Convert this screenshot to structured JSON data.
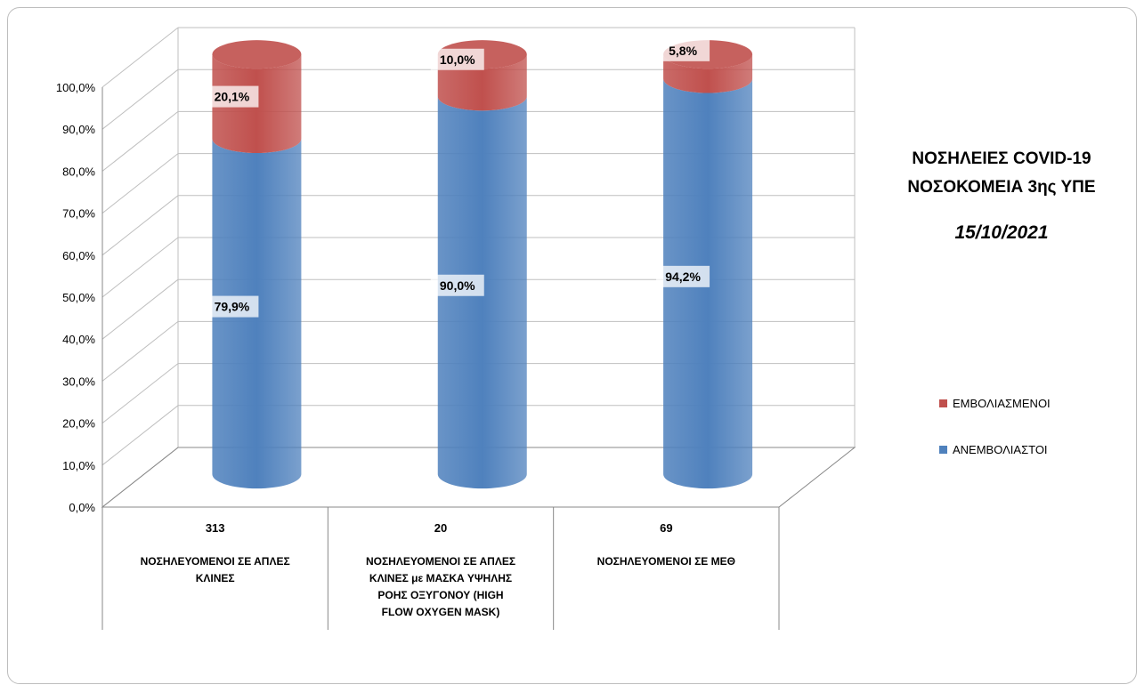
{
  "colors": {
    "vaccinated": "#c0504d",
    "unvaccinated": "#4f81bd",
    "grid": "#bfbfbf",
    "axis": "#888888"
  },
  "titles": {
    "line1": "ΝΟΣΗΛΕΙΕΣ COVID-19",
    "line2": "ΝΟΣΟΚΟΜΕΙΑ 3ης ΥΠΕ",
    "date": "15/10/2021"
  },
  "legend": [
    {
      "label": "ΕΜΒΟΛΙΑΣΜΕΝΟΙ",
      "color": "#c0504d"
    },
    {
      "label": "ΑΝΕΜΒΟΛΙΑΣΤΟΙ",
      "color": "#4f81bd"
    }
  ],
  "chart_data": {
    "type": "bar",
    "stacked": true,
    "three_d": true,
    "ylim": [
      0,
      100
    ],
    "y_ticks": [
      "0,0%",
      "10,0%",
      "20,0%",
      "30,0%",
      "40,0%",
      "50,0%",
      "60,0%",
      "70,0%",
      "80,0%",
      "90,0%",
      "100,0%"
    ],
    "categories": [
      {
        "count": "313",
        "label_lines": [
          "ΝΟΣΗΛΕΥΟΜΕΝΟΙ ΣΕ ΑΠΛΕΣ",
          "ΚΛΙΝΕΣ"
        ]
      },
      {
        "count": "20",
        "label_lines": [
          "ΝΟΣΗΛΕΥΟΜΕΝΟΙ ΣΕ ΑΠΛΕΣ",
          "ΚΛΙΝΕΣ με ΜΑΣΚΑ ΥΨΗΛΗΣ",
          "ΡΟΗΣ ΟΞΥΓΟΝΟΥ (HIGH",
          "FLOW OXYGEN MASK)"
        ]
      },
      {
        "count": "69",
        "label_lines": [
          "ΝΟΣΗΛΕΥΟΜΕΝΟΙ ΣΕ ΜΕΘ"
        ]
      }
    ],
    "series": [
      {
        "name": "ΑΝΕΜΒΟΛΙΑΣΤΟΙ",
        "values": [
          79.9,
          90.0,
          94.2
        ],
        "labels": [
          "79,9%",
          "90,0%",
          "94,2%"
        ],
        "color": "#4f81bd"
      },
      {
        "name": "ΕΜΒΟΛΙΑΣΜΕΝΟΙ",
        "values": [
          20.1,
          10.0,
          5.8
        ],
        "labels": [
          "20,1%",
          "10,0%",
          "5,8%"
        ],
        "color": "#c0504d"
      }
    ],
    "legend_position": "right",
    "grid": true
  }
}
